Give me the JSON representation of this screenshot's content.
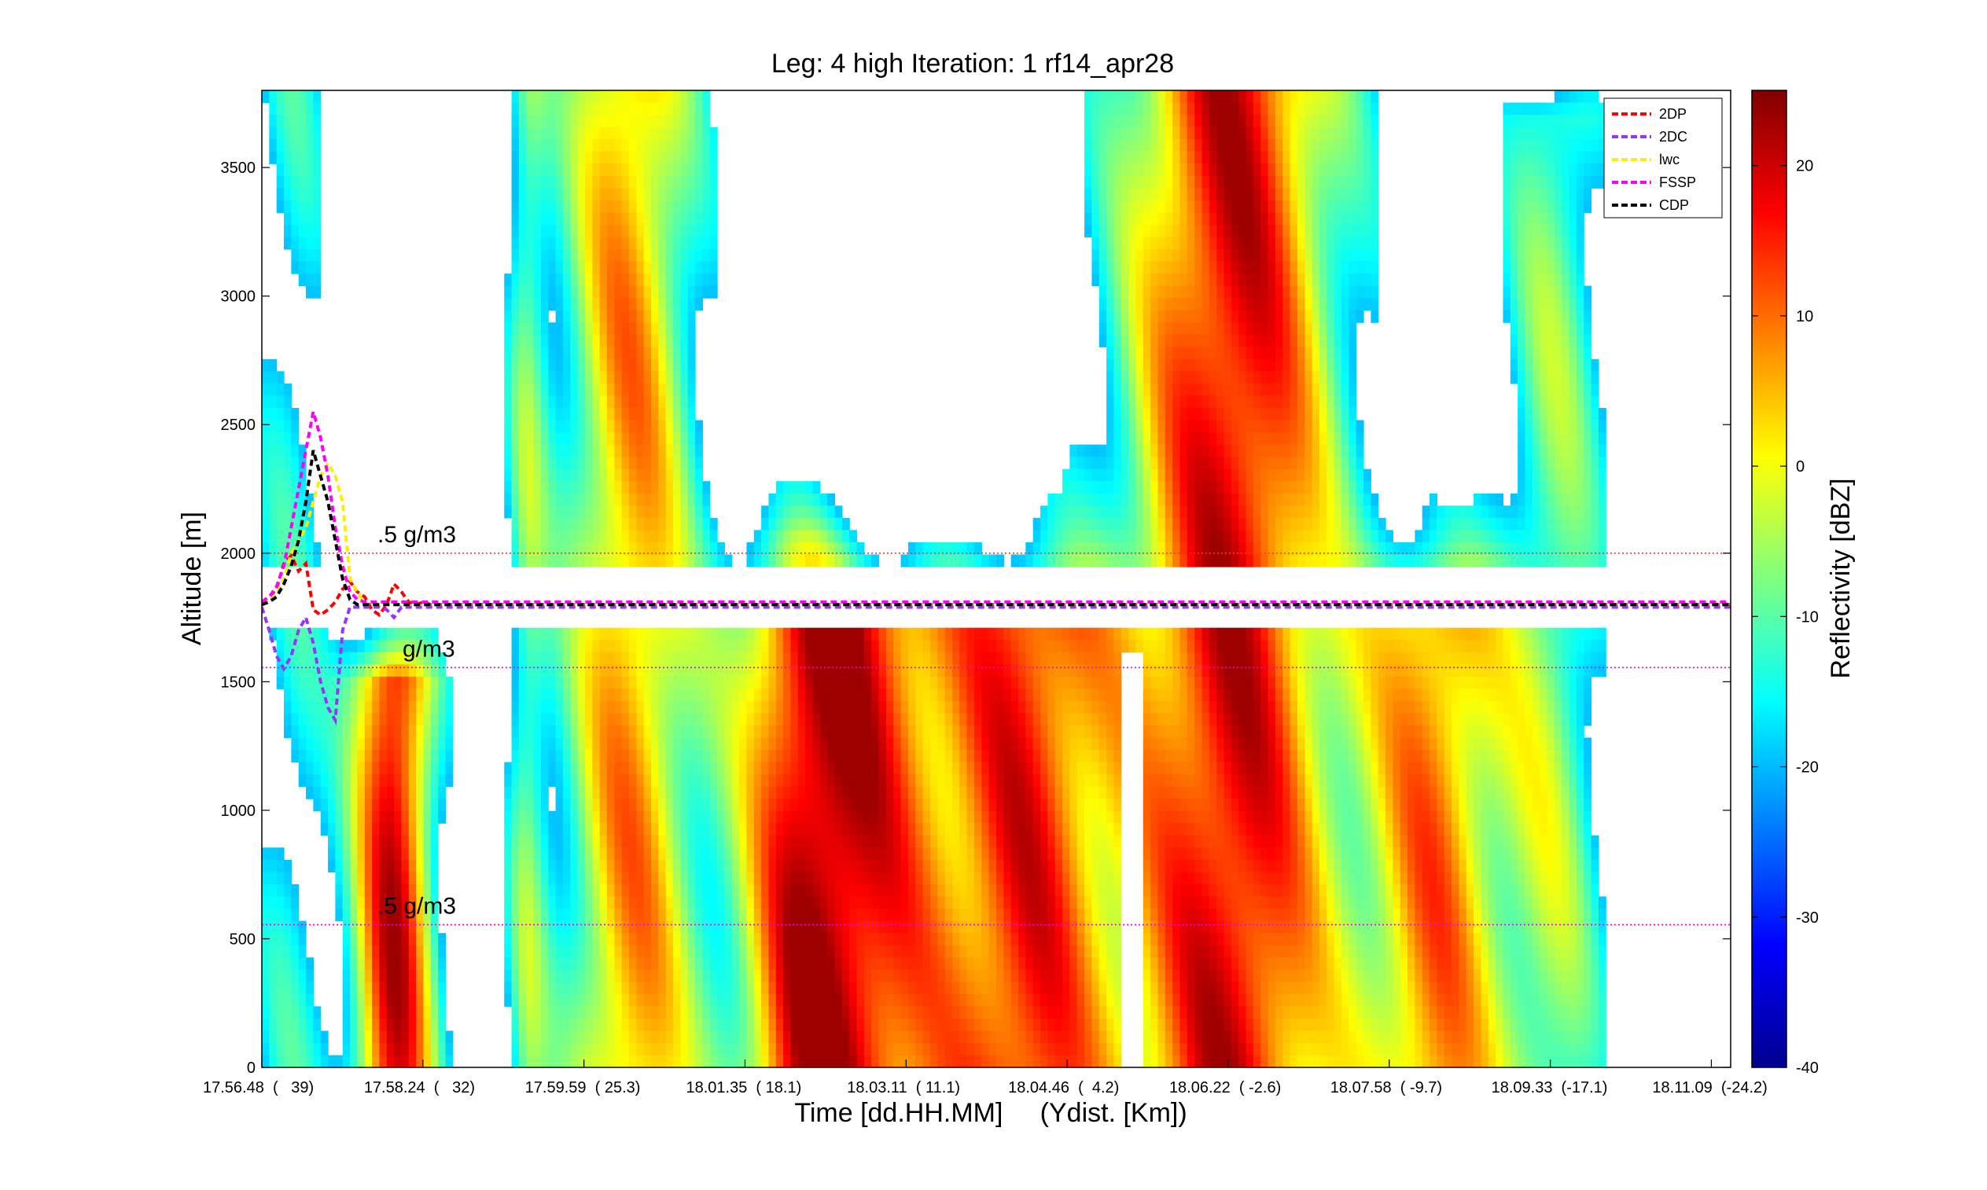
{
  "chart_data": {
    "type": "heatmap",
    "title": "Leg: 4 high Iteration: 1  rf14_apr28",
    "xlabel": "Time [dd.HH.MM]     (Ydist. [Km])",
    "ylabel": "Altitude [m]",
    "ylim": [
      0,
      3800
    ],
    "x_ticks": [
      "17.56.48  (   39)",
      "17.58.24  (   32)",
      "17.59.59  ( 25.3)",
      "18.01.35  ( 18.1)",
      "18.03.11  ( 11.1)",
      "18.04.46  (  4.2)",
      "18.06.22  ( -2.6)",
      "18.07.58  ( -9.7)",
      "18.09.33  (-17.1)",
      "18.11.09  (-24.2)"
    ],
    "y_ticks": [
      0,
      500,
      1000,
      1500,
      2000,
      2500,
      3000,
      3500
    ],
    "colorbar": {
      "label": "Reflectivity [dBZ]",
      "range": [
        -40,
        25
      ],
      "ticks": [
        -40,
        -30,
        -20,
        -10,
        0,
        10,
        20
      ],
      "colormap": "jet"
    },
    "flight_altitude_m": 1800,
    "reference_lines": [
      {
        "altitude_m": 2000,
        "color": "#ff3030",
        "label": ".5 g/m3"
      },
      {
        "altitude_m": 1555,
        "color": "#ee00ee",
        "label": "g/m3"
      },
      {
        "altitude_m": 555,
        "color": "#ee00ee",
        "label": ".5 g/m3"
      }
    ],
    "series": [
      {
        "name": "2DP",
        "color": "#ff0000",
        "style": "dashed",
        "values": [
          1810,
          1830,
          1860,
          1960,
          1990,
          1930,
          1960,
          1780,
          1760,
          1780,
          1810,
          1860,
          1890,
          1850,
          1830,
          1780,
          1760,
          1800,
          1880,
          1850,
          1810,
          1800,
          1810,
          1800,
          1800,
          1800,
          1800,
          1800,
          1800,
          1800,
          1800,
          1800,
          1800,
          1800,
          1800,
          1800,
          1800,
          1800,
          1800,
          1800,
          1800,
          1800,
          1800,
          1800,
          1800,
          1800,
          1800,
          1800,
          1800,
          1800,
          1800,
          1800,
          1800,
          1800,
          1800,
          1800,
          1800,
          1800,
          1800,
          1800,
          1800,
          1800,
          1800,
          1800,
          1800,
          1800,
          1800,
          1800,
          1800,
          1800,
          1800,
          1800,
          1800,
          1800,
          1800,
          1800,
          1800,
          1800,
          1800,
          1800,
          1800,
          1800,
          1800,
          1800,
          1800,
          1800,
          1800,
          1800,
          1800,
          1800,
          1800,
          1800,
          1800,
          1800,
          1800,
          1800,
          1800,
          1800,
          1800,
          1800,
          1800,
          1800,
          1800,
          1800,
          1800,
          1800,
          1800,
          1800,
          1800,
          1800,
          1800,
          1800,
          1800,
          1800,
          1800,
          1800,
          1800,
          1800,
          1800,
          1800,
          1800,
          1800,
          1800,
          1800,
          1800,
          1800,
          1800,
          1800,
          1800,
          1800,
          1800,
          1800,
          1800,
          1800,
          1800,
          1800,
          1800,
          1800,
          1800,
          1800,
          1800,
          1800,
          1800,
          1800,
          1800,
          1800,
          1800,
          1800,
          1800,
          1800,
          1800,
          1800,
          1800,
          1800,
          1800,
          1800,
          1800,
          1800,
          1800,
          1800,
          1800,
          1800,
          1800,
          1800,
          1800,
          1800,
          1800,
          1800,
          1800,
          1800,
          1800,
          1800,
          1800,
          1800,
          1800,
          1800,
          1800,
          1800,
          1800,
          1800,
          1800,
          1800,
          1800,
          1800,
          1800,
          1800,
          1800,
          1800,
          1800,
          1800,
          1800,
          1800,
          1800,
          1800,
          1800,
          1800,
          1800,
          1800,
          1800,
          1800,
          1800
        ]
      },
      {
        "name": "2DC",
        "color": "#9933ff",
        "style": "dashed",
        "values": [
          1790,
          1700,
          1600,
          1550,
          1600,
          1700,
          1750,
          1650,
          1500,
          1400,
          1350,
          1700,
          1790,
          1790,
          1790,
          1790,
          1790,
          1780,
          1750,
          1790,
          1790,
          1790,
          1790,
          1790,
          1790,
          1790,
          1790,
          1790,
          1790,
          1790,
          1790,
          1790,
          1790,
          1790,
          1790,
          1790,
          1790,
          1790,
          1790,
          1790,
          1790,
          1790,
          1790,
          1790,
          1790,
          1790,
          1790,
          1790,
          1790,
          1790,
          1790,
          1790,
          1790,
          1790,
          1790,
          1790,
          1790,
          1790,
          1790,
          1790,
          1790,
          1790,
          1790,
          1790,
          1790,
          1790,
          1790,
          1790,
          1790,
          1790,
          1790,
          1790,
          1790,
          1790,
          1790,
          1790,
          1790,
          1790,
          1790,
          1790,
          1790,
          1790,
          1790,
          1790,
          1790,
          1790,
          1790,
          1790,
          1790,
          1790,
          1790,
          1790,
          1790,
          1790,
          1790,
          1790,
          1790,
          1790,
          1790,
          1790,
          1790,
          1790,
          1790,
          1790,
          1790,
          1790,
          1790,
          1790,
          1790,
          1790,
          1790,
          1790,
          1790,
          1790,
          1790,
          1790,
          1790,
          1790,
          1790,
          1790,
          1790,
          1790,
          1790,
          1790,
          1790,
          1790,
          1790,
          1790,
          1790,
          1790,
          1790,
          1790,
          1790,
          1790,
          1790,
          1790,
          1790,
          1790,
          1790,
          1790,
          1790,
          1790,
          1790,
          1790,
          1790,
          1790,
          1790,
          1790,
          1790,
          1790,
          1790,
          1790,
          1790,
          1790,
          1790,
          1790,
          1790,
          1790,
          1790,
          1790,
          1790,
          1790,
          1790,
          1790,
          1790,
          1790,
          1790,
          1790,
          1790,
          1790,
          1790,
          1790,
          1790,
          1790,
          1790,
          1790,
          1790,
          1790,
          1790,
          1790,
          1790,
          1790,
          1790,
          1790,
          1790,
          1790,
          1790,
          1790,
          1790,
          1790,
          1790,
          1790,
          1790,
          1790,
          1790,
          1790,
          1790,
          1790,
          1790,
          1790,
          1790
        ]
      },
      {
        "name": "lwc",
        "color": "#ffee00",
        "style": "dashed",
        "values": [
          1800,
          1820,
          1840,
          1900,
          2000,
          2050,
          2100,
          2200,
          2300,
          2350,
          2300,
          2200,
          1900,
          1850,
          1800,
          1800,
          1800,
          1800,
          1800,
          1800,
          1800,
          1800,
          1800,
          1800,
          1800,
          1800,
          1800,
          1800,
          1800,
          1800,
          1800,
          1800,
          1800,
          1800,
          1800,
          1800,
          1800,
          1800,
          1800,
          1800,
          1800,
          1800,
          1800,
          1800,
          1800,
          1800,
          1800,
          1800,
          1800,
          1800,
          1800,
          1800,
          1800,
          1800,
          1800,
          1800,
          1800,
          1800,
          1800,
          1800,
          1800,
          1800,
          1800,
          1800,
          1800,
          1800,
          1800,
          1800,
          1800,
          1800,
          1800,
          1800,
          1800,
          1800,
          1800,
          1800,
          1800,
          1800,
          1800,
          1800,
          1800,
          1800,
          1800,
          1800,
          1800,
          1800,
          1800,
          1800,
          1800,
          1800,
          1800,
          1800,
          1800,
          1800,
          1800,
          1800,
          1800,
          1800,
          1800,
          1800,
          1800,
          1800,
          1800,
          1800,
          1800,
          1800,
          1800,
          1800,
          1800,
          1800,
          1800,
          1800,
          1800,
          1800,
          1800,
          1800,
          1800,
          1800,
          1800,
          1800,
          1800,
          1800,
          1800,
          1800,
          1800,
          1800,
          1800,
          1800,
          1800,
          1800,
          1800,
          1800,
          1800,
          1800,
          1800,
          1800,
          1800,
          1800,
          1800,
          1800,
          1800,
          1800,
          1800,
          1800,
          1800,
          1800,
          1800,
          1800,
          1800,
          1800,
          1800,
          1800,
          1800,
          1800,
          1800,
          1800,
          1800,
          1800,
          1800,
          1800,
          1800,
          1800,
          1800,
          1800,
          1800,
          1800,
          1800,
          1800,
          1800,
          1800,
          1800,
          1800,
          1800,
          1800,
          1800,
          1800,
          1800,
          1800,
          1800,
          1800,
          1800,
          1800,
          1800,
          1800,
          1800,
          1800,
          1800,
          1800,
          1800,
          1800,
          1800,
          1800,
          1800,
          1800,
          1800,
          1800,
          1800,
          1800,
          1800,
          1800,
          1800
        ]
      },
      {
        "name": "FSSP",
        "color": "#ff00ff",
        "style": "dashed",
        "values": [
          1810,
          1830,
          1870,
          1950,
          2100,
          2250,
          2400,
          2550,
          2450,
          2300,
          2100,
          1950,
          1850,
          1820,
          1810,
          1810,
          1810,
          1810,
          1810,
          1810,
          1810,
          1810,
          1810,
          1810,
          1810,
          1810,
          1810,
          1810,
          1810,
          1810,
          1810,
          1810,
          1810,
          1810,
          1810,
          1810,
          1810,
          1810,
          1810,
          1810,
          1810,
          1810,
          1810,
          1810,
          1810,
          1810,
          1810,
          1810,
          1810,
          1810,
          1810,
          1810,
          1810,
          1810,
          1810,
          1810,
          1810,
          1810,
          1810,
          1810,
          1810,
          1810,
          1810,
          1810,
          1810,
          1810,
          1810,
          1810,
          1810,
          1810,
          1810,
          1810,
          1810,
          1810,
          1810,
          1810,
          1810,
          1810,
          1810,
          1810,
          1810,
          1810,
          1810,
          1810,
          1810,
          1810,
          1810,
          1810,
          1810,
          1810,
          1810,
          1810,
          1810,
          1810,
          1810,
          1810,
          1810,
          1810,
          1810,
          1810,
          1810,
          1810,
          1810,
          1810,
          1810,
          1810,
          1810,
          1810,
          1810,
          1810,
          1810,
          1810,
          1810,
          1810,
          1810,
          1810,
          1810,
          1810,
          1810,
          1810,
          1810,
          1810,
          1810,
          1810,
          1810,
          1810,
          1810,
          1810,
          1810,
          1810,
          1810,
          1810,
          1810,
          1810,
          1810,
          1810,
          1810,
          1810,
          1810,
          1810,
          1810,
          1810,
          1810,
          1810,
          1810,
          1810,
          1810,
          1810,
          1810,
          1810,
          1810,
          1810,
          1810,
          1810,
          1810,
          1810,
          1810,
          1810,
          1810,
          1810,
          1810,
          1810,
          1810,
          1810,
          1810,
          1810,
          1810,
          1810,
          1810,
          1810,
          1810,
          1810,
          1810,
          1810,
          1810,
          1810,
          1810,
          1810,
          1810,
          1810,
          1810,
          1810,
          1810,
          1810,
          1810,
          1810,
          1810,
          1810,
          1810,
          1810,
          1810,
          1810,
          1810,
          1810,
          1810,
          1810,
          1810,
          1810,
          1810,
          1810,
          1810
        ]
      },
      {
        "name": "CDP",
        "color": "#000000",
        "style": "dashed",
        "values": [
          1800,
          1810,
          1830,
          1880,
          1950,
          2050,
          2200,
          2400,
          2300,
          2200,
          2050,
          1900,
          1820,
          1800,
          1800,
          1800,
          1800,
          1800,
          1800,
          1800,
          1800,
          1800,
          1800,
          1800,
          1800,
          1800,
          1800,
          1800,
          1800,
          1800,
          1800,
          1800,
          1800,
          1800,
          1800,
          1800,
          1800,
          1800,
          1800,
          1800,
          1800,
          1800,
          1800,
          1800,
          1800,
          1800,
          1800,
          1800,
          1800,
          1800,
          1800,
          1800,
          1800,
          1800,
          1800,
          1800,
          1800,
          1800,
          1800,
          1800,
          1800,
          1800,
          1800,
          1800,
          1800,
          1800,
          1800,
          1800,
          1800,
          1800,
          1800,
          1800,
          1800,
          1800,
          1800,
          1800,
          1800,
          1800,
          1800,
          1800,
          1800,
          1800,
          1800,
          1800,
          1800,
          1800,
          1800,
          1800,
          1800,
          1800,
          1800,
          1800,
          1800,
          1800,
          1800,
          1800,
          1800,
          1800,
          1800,
          1800,
          1800,
          1800,
          1800,
          1800,
          1800,
          1800,
          1800,
          1800,
          1800,
          1800,
          1800,
          1800,
          1800,
          1800,
          1800,
          1800,
          1800,
          1800,
          1800,
          1800,
          1800,
          1800,
          1800,
          1800,
          1800,
          1800,
          1800,
          1800,
          1800,
          1800,
          1800,
          1800,
          1800,
          1800,
          1800,
          1800,
          1800,
          1800,
          1800,
          1800,
          1800,
          1800,
          1800,
          1800,
          1800,
          1800,
          1800,
          1800,
          1800,
          1800,
          1800,
          1800,
          1800,
          1800,
          1800,
          1800,
          1800,
          1800,
          1800,
          1800,
          1800,
          1800,
          1800,
          1800,
          1800,
          1800,
          1800,
          1800,
          1800,
          1800,
          1800,
          1800,
          1800,
          1800,
          1800,
          1800,
          1800,
          1800,
          1800,
          1800,
          1800,
          1800,
          1800,
          1800,
          1800,
          1800,
          1800,
          1800,
          1800,
          1800,
          1800,
          1800,
          1800,
          1800,
          1800,
          1800,
          1800,
          1800,
          1800,
          1800,
          1800
        ]
      }
    ],
    "legend": {
      "position": "top-right",
      "entries": [
        "2DP",
        "2DC",
        "lwc",
        "FSSP",
        "CDP"
      ]
    },
    "grid": false
  }
}
